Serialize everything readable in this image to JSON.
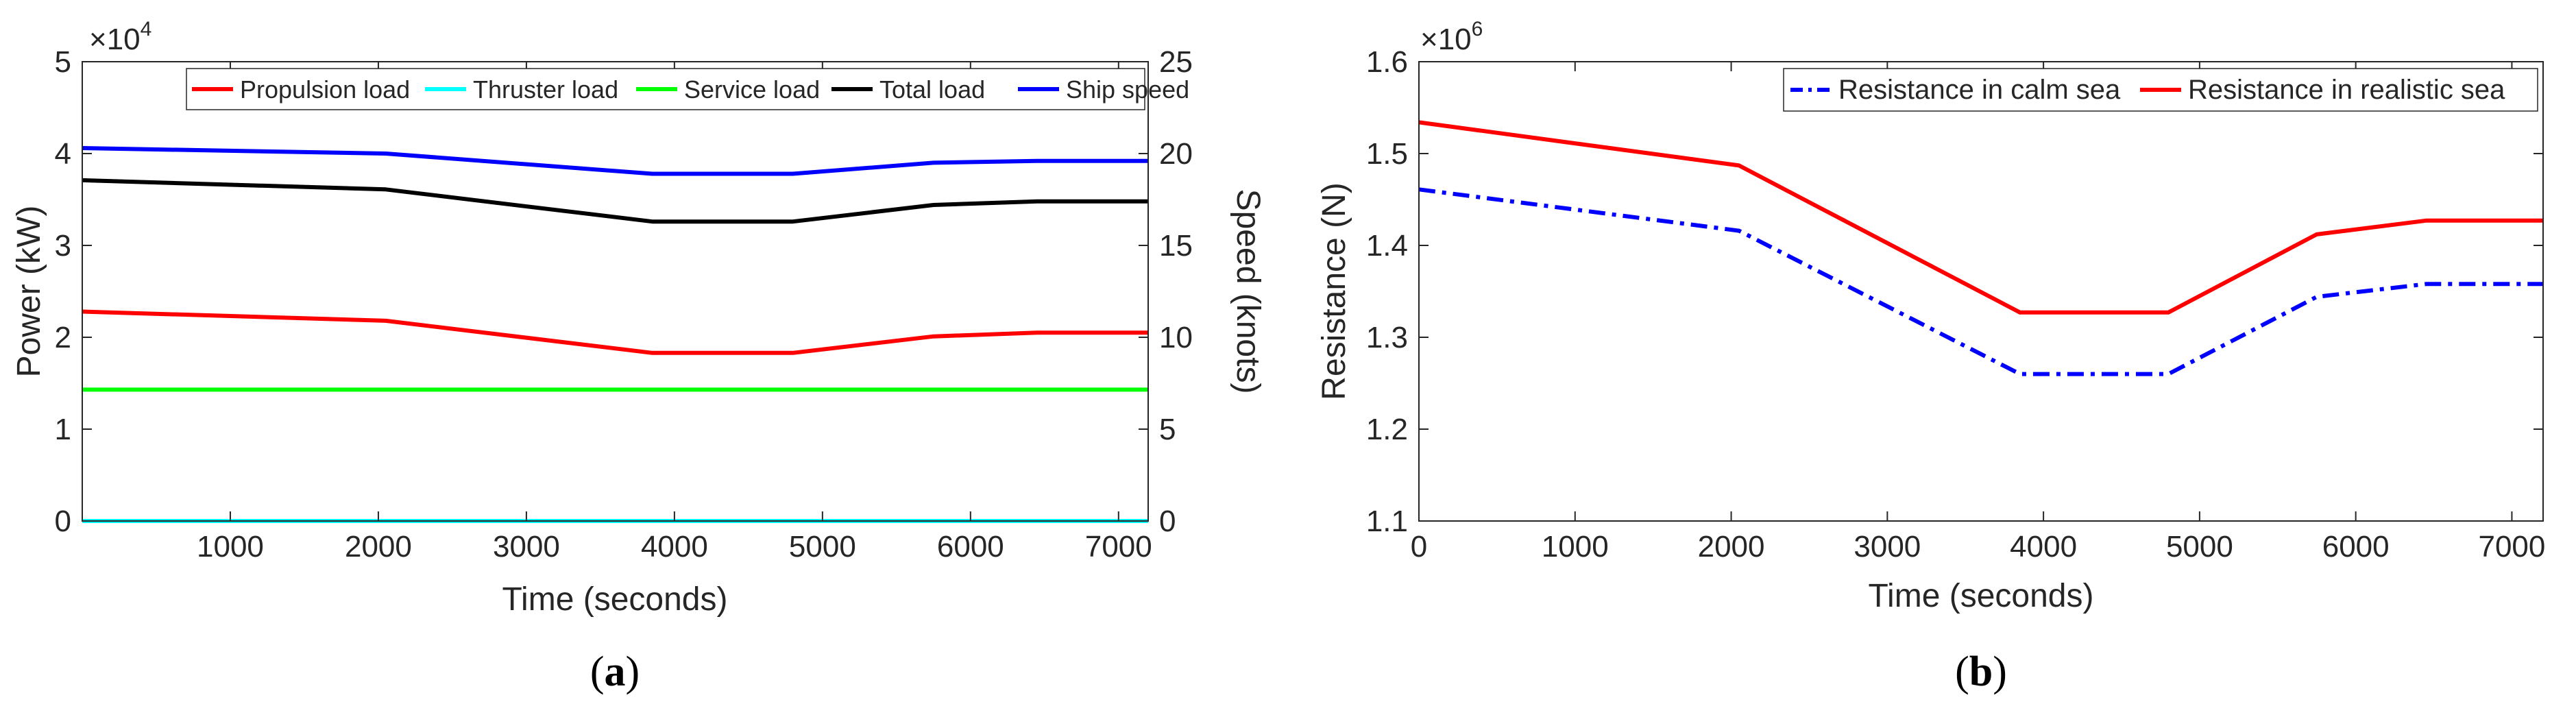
{
  "chart_data": [
    {
      "type": "line",
      "panel_label": "a",
      "xlabel": "Time (seconds)",
      "ylabel": "Power (kW)",
      "y2label": "Speed (knots)",
      "y_exponent_label": "×10",
      "y_exponent_power": "4",
      "xlim": [
        0,
        7200
      ],
      "ylim": [
        0,
        5
      ],
      "y2lim": [
        0,
        25
      ],
      "xticks": [
        1000,
        2000,
        3000,
        4000,
        5000,
        6000,
        7000
      ],
      "yticks": [
        0,
        1,
        2,
        3,
        4,
        5
      ],
      "y2ticks": [
        0,
        5,
        10,
        15,
        20,
        25
      ],
      "legend_placement": "top",
      "series": [
        {
          "name": "Propulsion load",
          "axis": "left",
          "color": "#ff0000",
          "x": [
            0,
            2050,
            3850,
            4800,
            5750,
            6450,
            7200
          ],
          "values": [
            2.28,
            2.18,
            1.83,
            1.83,
            2.01,
            2.05,
            2.05
          ]
        },
        {
          "name": "Thruster load",
          "axis": "left",
          "color": "#00ffff",
          "x": [
            0,
            7200
          ],
          "values": [
            0.0,
            0.0
          ]
        },
        {
          "name": "Service load",
          "axis": "left",
          "color": "#00ff00",
          "x": [
            0,
            7200
          ],
          "values": [
            1.43,
            1.43
          ]
        },
        {
          "name": "Total load",
          "axis": "left",
          "color": "#000000",
          "x": [
            0,
            2050,
            3850,
            4800,
            5750,
            6450,
            7200
          ],
          "values": [
            3.71,
            3.61,
            3.26,
            3.26,
            3.44,
            3.48,
            3.48
          ]
        },
        {
          "name": "Ship speed",
          "axis": "right",
          "color": "#0000ff",
          "x": [
            0,
            2050,
            3850,
            4800,
            5750,
            6450,
            7200
          ],
          "values": [
            20.3,
            20.0,
            18.9,
            18.9,
            19.5,
            19.6,
            19.6
          ]
        }
      ]
    },
    {
      "type": "line",
      "panel_label": "b",
      "xlabel": "Time (seconds)",
      "ylabel": "Resistance (N)",
      "y_exponent_label": "×10",
      "y_exponent_power": "6",
      "xlim": [
        0,
        7200
      ],
      "ylim": [
        1.1,
        1.6
      ],
      "xticks": [
        0,
        1000,
        2000,
        3000,
        4000,
        5000,
        6000,
        7000
      ],
      "yticks": [
        1.1,
        1.2,
        1.3,
        1.4,
        1.5,
        1.6
      ],
      "legend_placement": "top-right",
      "series": [
        {
          "name": "Resistance in calm sea",
          "color": "#0000ff",
          "style": "dashdot",
          "x": [
            0,
            2050,
            3850,
            4800,
            5750,
            6450,
            7200
          ],
          "values": [
            1.461,
            1.416,
            1.26,
            1.26,
            1.344,
            1.358,
            1.358
          ]
        },
        {
          "name": "Resistance in realistic sea",
          "color": "#ff0000",
          "style": "solid",
          "x": [
            0,
            2050,
            3850,
            4800,
            5750,
            6450,
            7200
          ],
          "values": [
            1.534,
            1.487,
            1.327,
            1.327,
            1.412,
            1.427,
            1.427
          ]
        }
      ]
    }
  ]
}
